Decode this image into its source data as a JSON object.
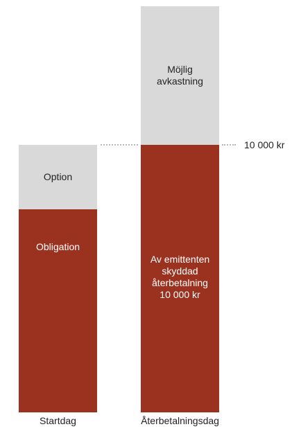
{
  "columns": [
    {
      "label": "Startdag",
      "segments": {
        "top": "Option",
        "bottom": "Obligation"
      }
    },
    {
      "label": "Återbetalningsdag",
      "segments": {
        "top": "Möjlig\navkastning",
        "bottom": "Av emittenten\nskyddad\nåterbetalning\n10 000 kr"
      }
    }
  ],
  "reference_line": {
    "label": "10 000 kr"
  },
  "colors": {
    "grey_segment": "#d9d9d9",
    "red_segment": "#9b3220",
    "dotted_line": "#b5b5b5"
  }
}
